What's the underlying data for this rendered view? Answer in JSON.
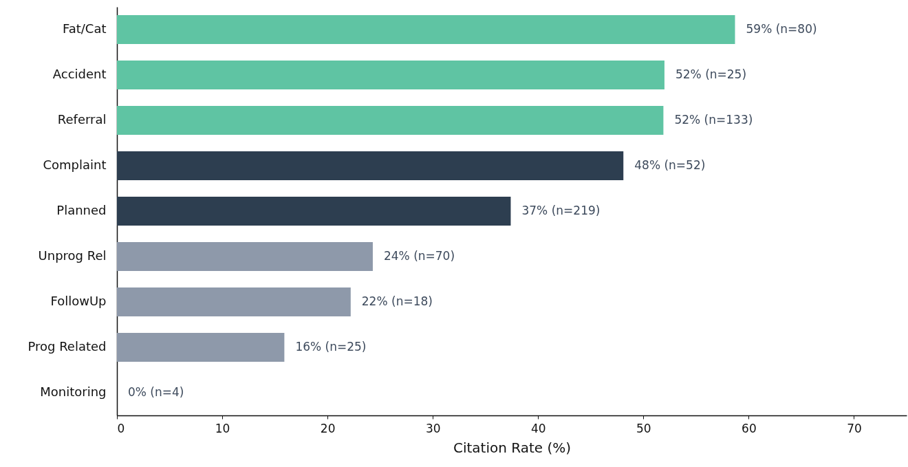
{
  "chart_data": {
    "type": "bar",
    "orientation": "horizontal",
    "xlabel": "Citation Rate (%)",
    "categories": [
      "Fat/Cat",
      "Accident",
      "Referral",
      "Complaint",
      "Planned",
      "Unprog Rel",
      "FollowUp",
      "Prog Related",
      "Monitoring"
    ],
    "values": [
      58.7,
      52.0,
      51.9,
      48.1,
      37.4,
      24.3,
      22.2,
      15.9,
      0
    ],
    "colors": [
      "#5fc4a3",
      "#5fc4a3",
      "#5fc4a3",
      "#2d3e50",
      "#2d3e50",
      "#8e99aa",
      "#8e99aa",
      "#8e99aa",
      "#8e99aa"
    ],
    "value_labels": [
      "59%  (n=80)",
      "52%  (n=25)",
      "52%  (n=133)",
      "48%  (n=52)",
      "37%  (n=219)",
      "24%  (n=70)",
      "22%  (n=18)",
      "16%  (n=25)",
      "0%  (n=4)"
    ],
    "xlim": [
      0,
      75
    ],
    "xticks": [
      0,
      10,
      20,
      30,
      40,
      50,
      60,
      70
    ]
  }
}
